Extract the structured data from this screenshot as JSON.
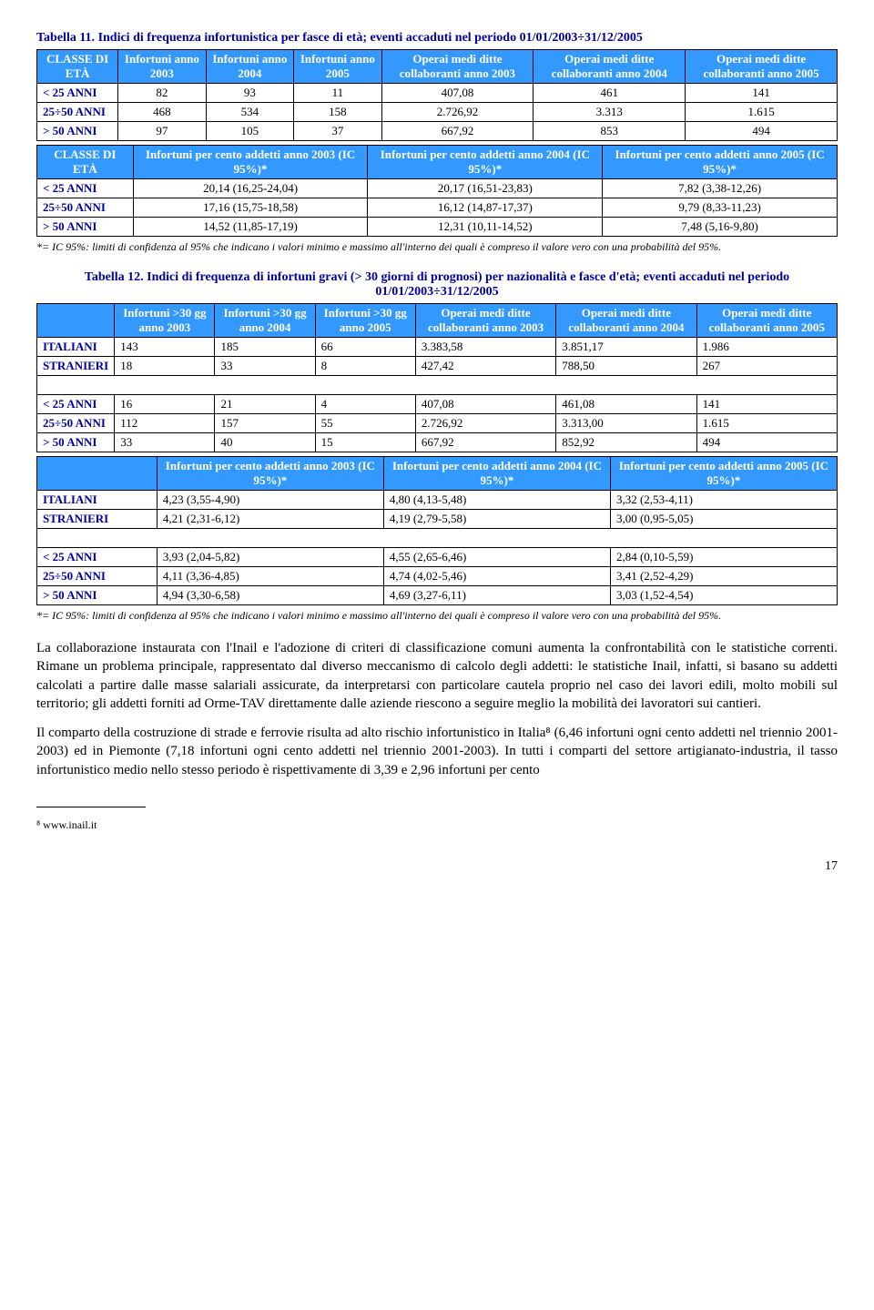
{
  "table11": {
    "title_prefix": "Tabella 11.",
    "title": " Indici di frequenza infortunistica per fasce di età; eventi accaduti nel periodo 01/01/2003÷31/12/2005",
    "headersA": [
      "CLASSE DI ETÀ",
      "Infortuni anno 2003",
      "Infortuni anno 2004",
      "Infortuni anno 2005",
      "Operai medi ditte collaboranti anno 2003",
      "Operai medi ditte collaboranti anno 2004",
      "Operai medi ditte collaboranti anno 2005"
    ],
    "rowsA": [
      [
        "< 25 ANNI",
        "82",
        "93",
        "11",
        "407,08",
        "461",
        "141"
      ],
      [
        "25÷50 ANNI",
        "468",
        "534",
        "158",
        "2.726,92",
        "3.313",
        "1.615"
      ],
      [
        "> 50 ANNI",
        "97",
        "105",
        "37",
        "667,92",
        "853",
        "494"
      ]
    ],
    "headersB": [
      "CLASSE DI ETÀ",
      "Infortuni per cento addetti anno 2003  (IC 95%)*",
      "Infortuni per cento addetti anno 2004 (IC 95%)*",
      "Infortuni per cento addetti anno 2005 (IC 95%)*"
    ],
    "rowsB": [
      [
        "< 25 ANNI",
        "20,14 (16,25-24,04)",
        "20,17 (16,51-23,83)",
        "7,82  (3,38-12,26)"
      ],
      [
        "25÷50 ANNI",
        "17,16 (15,75-18,58)",
        "16,12 (14,87-17,37)",
        "9,79  (8,33-11,23)"
      ],
      [
        "> 50 ANNI",
        "14,52 (11,85-17,19)",
        "12,31 (10,11-14,52)",
        "7,48  (5,16-9,80)"
      ]
    ],
    "footnote": "*= IC 95%: limiti di confidenza al 95% che indicano i valori minimo e massimo all'interno dei quali è compreso il valore vero con una probabilità del 95%."
  },
  "table12": {
    "title_prefix": "Tabella 12.",
    "title": " Indici di frequenza di infortuni gravi (> 30 giorni di prognosi) per nazionalità e fasce d'età; eventi accaduti nel periodo 01/01/2003÷31/12/2005",
    "headersA": [
      "",
      "Infortuni >30 gg anno 2003",
      "Infortuni >30 gg anno 2004",
      "Infortuni >30 gg anno 2005",
      "Operai medi ditte collaboranti anno 2003",
      "Operai medi ditte collaboranti anno 2004",
      "Operai medi ditte collaboranti anno 2005"
    ],
    "rowsA1": [
      [
        "ITALIANI",
        "143",
        "185",
        "66",
        "3.383,58",
        "3.851,17",
        "1.986"
      ],
      [
        "STRANIERI",
        "18",
        "33",
        "8",
        "427,42",
        "788,50",
        "267"
      ]
    ],
    "rowsA2": [
      [
        "< 25 ANNI",
        "16",
        "21",
        "4",
        "407,08",
        "461,08",
        "141"
      ],
      [
        "25÷50 ANNI",
        "112",
        "157",
        "55",
        "2.726,92",
        "3.313,00",
        "1.615"
      ],
      [
        "> 50 ANNI",
        "33",
        "40",
        "15",
        "667,92",
        "852,92",
        "494"
      ]
    ],
    "headersB": [
      "",
      "Infortuni per cento addetti anno 2003 (IC 95%)*",
      "Infortuni per cento addetti anno 2004 (IC 95%)*",
      "Infortuni per cento addetti anno 2005 (IC 95%)*"
    ],
    "rowsB1": [
      [
        "ITALIANI",
        "4,23 (3,55-4,90)",
        "4,80 (4,13-5,48)",
        "3,32 (2,53-4,11)"
      ],
      [
        "STRANIERI",
        "4,21 (2,31-6,12)",
        "4,19 (2,79-5,58)",
        "3,00 (0,95-5,05)"
      ]
    ],
    "rowsB2": [
      [
        "< 25 ANNI",
        "3,93 (2,04-5,82)",
        "4,55 (2,65-6,46)",
        "2,84 (0,10-5,59)"
      ],
      [
        "25÷50 ANNI",
        "4,11 (3,36-4,85)",
        "4,74 (4,02-5,46)",
        "3,41 (2,52-4,29)"
      ],
      [
        "> 50 ANNI",
        "4,94 (3,30-6,58)",
        "4,69 (3,27-6,11)",
        "3,03 (1,52-4,54)"
      ]
    ],
    "footnote": "*= IC 95%: limiti di confidenza al 95% che indicano i valori minimo e massimo all'interno dei quali è compreso il valore vero con una probabilità del 95%."
  },
  "paragraph1": "La collaborazione instaurata con l'Inail e l'adozione di criteri di classificazione comuni aumenta la confrontabilità con le statistiche correnti. Rimane un problema principale, rappresentato dal diverso meccanismo di calcolo degli addetti: le statistiche Inail, infatti, si basano su addetti calcolati a partire dalle masse salariali assicurate, da interpretarsi con particolare cautela proprio nel caso dei lavori edili, molto mobili sul territorio; gli addetti forniti ad Orme-TAV direttamente dalle aziende riescono a seguire meglio la mobilità dei lavoratori sui cantieri.",
  "paragraph2": "Il comparto della costruzione di strade e ferrovie risulta ad alto rischio infortunistico in Italia⁸ (6,46 infortuni ogni cento addetti nel triennio 2001-2003) ed in Piemonte (7,18 infortuni ogni cento addetti nel triennio 2001-2003). In tutti i comparti del settore artigianato-industria, il tasso infortunistico medio nello stesso periodo è rispettivamente di 3,39 e 2,96 infortuni per cento",
  "reference": "⁸ www.inail.it",
  "page_num": "17",
  "colors": {
    "header_bg": "#3399ff",
    "header_text": "#ffffff",
    "title_color": "#0000a0",
    "row_label_color": "#0000a0"
  }
}
